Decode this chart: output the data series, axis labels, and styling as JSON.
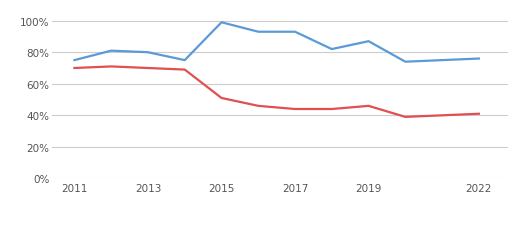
{
  "years": [
    2011,
    2012,
    2013,
    2014,
    2015,
    2016,
    2017,
    2018,
    2019,
    2020,
    2021,
    2022
  ],
  "nation_ford": [
    0.75,
    0.81,
    0.8,
    0.75,
    0.99,
    0.93,
    0.93,
    0.82,
    0.87,
    0.74,
    0.75,
    0.76
  ],
  "sc_state": [
    0.7,
    0.71,
    0.7,
    0.69,
    0.51,
    0.46,
    0.44,
    0.44,
    0.46,
    0.39,
    0.4,
    0.41
  ],
  "nation_ford_color": "#5b9bd5",
  "sc_state_color": "#e05050",
  "grid_color": "#cccccc",
  "background_color": "#ffffff",
  "ylim": [
    0,
    1.05
  ],
  "yticks": [
    0,
    0.2,
    0.4,
    0.6,
    0.8,
    1.0
  ],
  "xticks": [
    2011,
    2013,
    2015,
    2017,
    2019,
    2022
  ],
  "line_width": 1.6
}
